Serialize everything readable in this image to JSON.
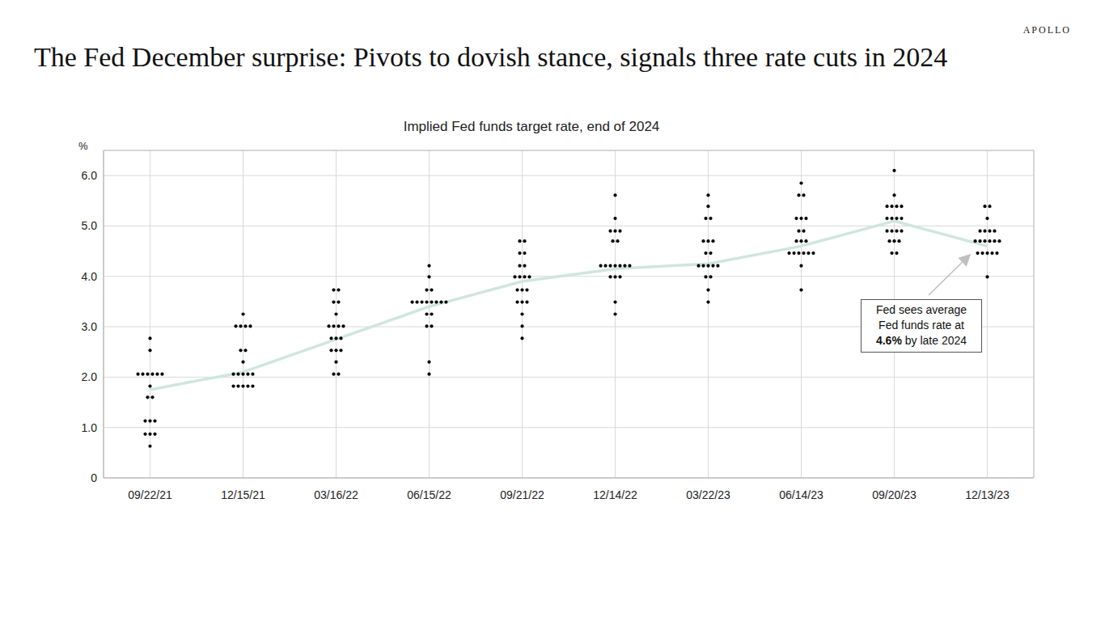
{
  "chart_data": {
    "type": "scatter",
    "title": "The Fed December surprise: Pivots to dovish stance, signals three rate cuts in 2024",
    "subtitle": "Implied Fed funds target rate, end of 2024",
    "logo": "APOLLO",
    "y_label": "%",
    "categories": [
      "09/22/21",
      "12/15/21",
      "03/16/22",
      "06/15/22",
      "09/21/22",
      "12/14/22",
      "03/22/23",
      "06/14/23",
      "09/20/23",
      "12/13/23"
    ],
    "series": [
      {
        "type": "line",
        "color": "#cfe6dd",
        "values": [
          1.75,
          2.1,
          2.75,
          3.4,
          3.9,
          4.15,
          4.25,
          4.6,
          5.1,
          4.6
        ]
      },
      {
        "type": "scatter",
        "color": "#000000",
        "marker": "circle",
        "values": [
          [
            0.63,
            0.87,
            0.87,
            0.87,
            1.13,
            1.13,
            1.13,
            1.6,
            1.6,
            1.82,
            2.06,
            2.06,
            2.06,
            2.06,
            2.06,
            2.06,
            2.53,
            2.77
          ],
          [
            1.82,
            1.82,
            1.82,
            1.82,
            1.82,
            2.06,
            2.06,
            2.06,
            2.06,
            2.06,
            2.3,
            2.53,
            2.53,
            3.01,
            3.01,
            3.01,
            3.01,
            3.25
          ],
          [
            2.06,
            2.06,
            2.3,
            2.53,
            2.53,
            2.53,
            2.77,
            2.77,
            2.77,
            3.01,
            3.01,
            3.01,
            3.01,
            3.25,
            3.49,
            3.49,
            3.73,
            3.73
          ],
          [
            2.06,
            2.3,
            3.01,
            3.01,
            3.25,
            3.25,
            3.49,
            3.49,
            3.49,
            3.49,
            3.49,
            3.49,
            3.49,
            3.49,
            3.73,
            3.73,
            3.99,
            4.21
          ],
          [
            2.77,
            3.01,
            3.25,
            3.49,
            3.49,
            3.49,
            3.73,
            3.73,
            3.73,
            3.99,
            3.99,
            3.99,
            3.99,
            4.21,
            4.21,
            4.46,
            4.46,
            4.7,
            4.7
          ],
          [
            3.25,
            3.49,
            3.99,
            3.99,
            3.99,
            4.21,
            4.21,
            4.21,
            4.21,
            4.21,
            4.21,
            4.21,
            4.7,
            4.7,
            4.9,
            4.9,
            4.9,
            5.15,
            5.61
          ],
          [
            3.49,
            3.73,
            3.99,
            3.99,
            4.21,
            4.21,
            4.21,
            4.21,
            4.21,
            4.46,
            4.46,
            4.7,
            4.7,
            4.7,
            5.15,
            5.15,
            5.39,
            5.61
          ],
          [
            3.73,
            4.21,
            4.46,
            4.46,
            4.46,
            4.46,
            4.46,
            4.46,
            4.7,
            4.7,
            4.7,
            4.9,
            4.9,
            5.15,
            5.15,
            5.15,
            5.61,
            5.61,
            5.85
          ],
          [
            4.46,
            4.46,
            4.7,
            4.7,
            4.7,
            4.9,
            4.9,
            4.9,
            4.9,
            5.15,
            5.15,
            5.15,
            5.15,
            5.39,
            5.39,
            5.39,
            5.39,
            5.61,
            6.1
          ],
          [
            3.99,
            4.46,
            4.46,
            4.46,
            4.46,
            4.46,
            4.7,
            4.7,
            4.7,
            4.7,
            4.7,
            4.7,
            4.9,
            4.9,
            4.9,
            4.9,
            5.15,
            5.39,
            5.39
          ]
        ]
      }
    ],
    "ylim": [
      0,
      6.5
    ],
    "yticks": [
      0,
      {
        "value": 1,
        "label": "1.0"
      },
      {
        "value": 2,
        "label": "2.0"
      },
      {
        "value": 3,
        "label": "3.0"
      },
      {
        "value": 4,
        "label": "4.0"
      },
      {
        "value": 5,
        "label": "5.0"
      },
      {
        "value": 6,
        "label": "6.0"
      }
    ],
    "grid": true,
    "annotation": [
      "Fed sees average",
      "Fed funds rate at",
      "4.6%",
      "by late 2024"
    ]
  }
}
